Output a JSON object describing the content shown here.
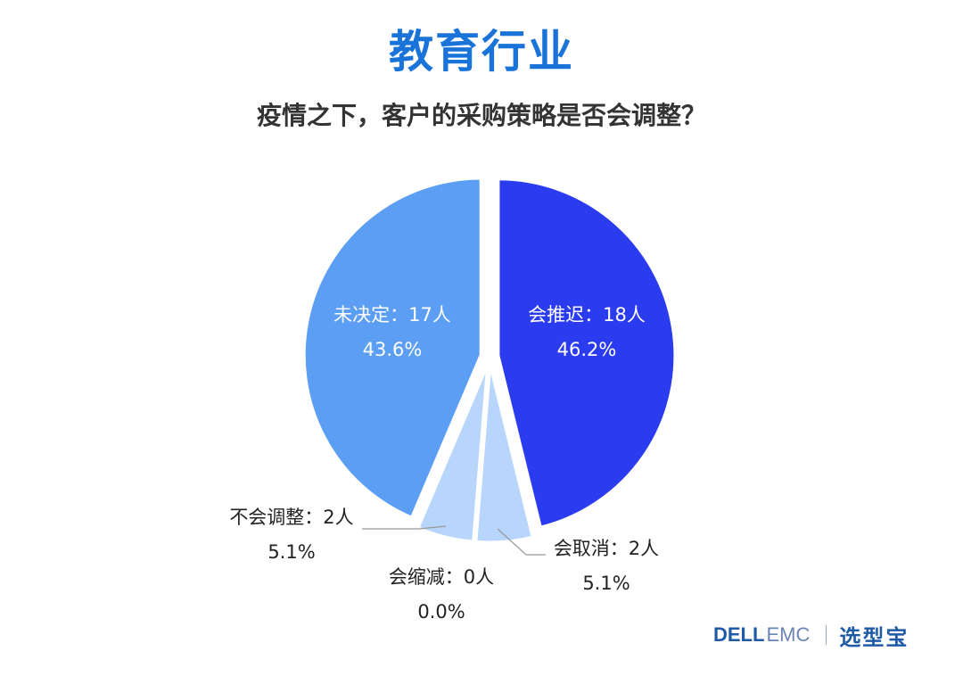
{
  "title": "教育行业",
  "subtitle": "疫情之下，客户的采购策略是否会调整？",
  "brand": {
    "dell": "DELL",
    "emc": "EMC",
    "cn": "选型宝"
  },
  "chart_data": {
    "type": "pie",
    "title": "疫情之下，客户的采购策略是否会调整？",
    "slices": [
      {
        "label": "会推迟：18人",
        "count": 18,
        "percent_label": "46.2%",
        "color": "#2b3bef",
        "label_color": "#ffffff"
      },
      {
        "label": "会取消：2人",
        "count": 2,
        "percent_label": "5.1%",
        "color": "#b8d6fb",
        "label_color": "#222222"
      },
      {
        "label": "会缩减：0人",
        "count": 0,
        "percent_label": "0.0%",
        "color": "#b8d6fb",
        "label_color": "#222222"
      },
      {
        "label": "不会调整：2人",
        "count": 2,
        "percent_label": "5.1%",
        "color": "#b8d6fb",
        "label_color": "#222222"
      },
      {
        "label": "未决定：17人",
        "count": 17,
        "percent_label": "43.6%",
        "color": "#5b9ef3",
        "label_color": "#ffffff"
      }
    ]
  }
}
